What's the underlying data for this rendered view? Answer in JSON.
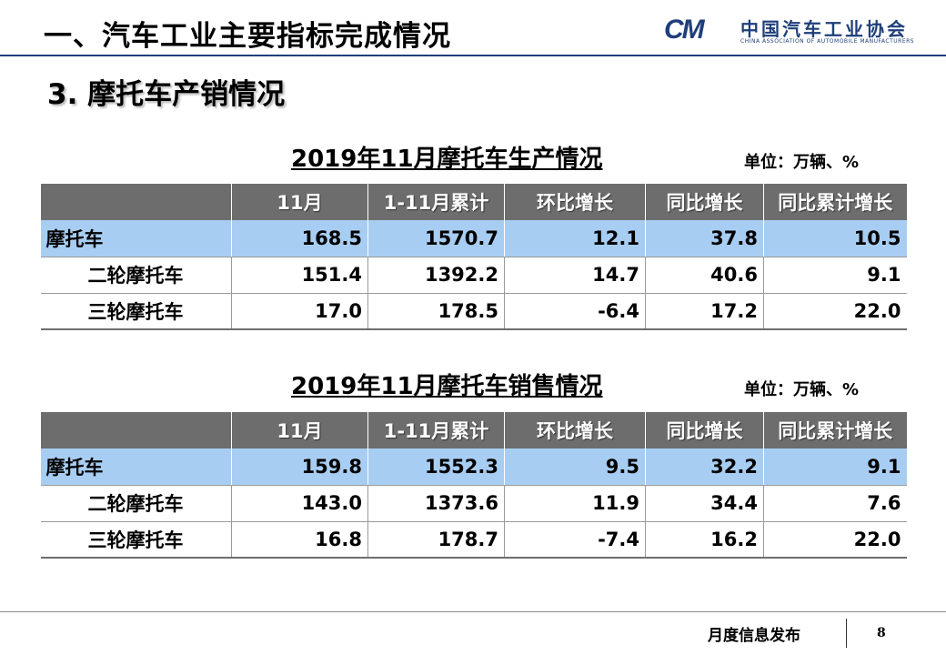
{
  "header": {
    "title": "一、汽车工业主要指标完成情况",
    "logo_mark": "CM",
    "logo_cn": "中国汽车工业协会",
    "logo_en": "CHINA ASSOCIATION OF AUTOMOBILE MANUFACTURERS"
  },
  "section_title": "3. 摩托车产销情况",
  "production": {
    "caption": "2019年11月摩托车生产情况",
    "unit": "单位：万辆、%",
    "headers": [
      "",
      "11月",
      "1-11月累计",
      "环比增长",
      "同比增长",
      "同比累计增长"
    ],
    "rows": [
      [
        "摩托车",
        "168.5",
        "1570.7",
        "12.1",
        "37.8",
        "10.5"
      ],
      [
        "二轮摩托车",
        "151.4",
        "1392.2",
        "14.7",
        "40.6",
        "9.1"
      ],
      [
        "三轮摩托车",
        "17.0",
        "178.5",
        "-6.4",
        "17.2",
        "22.0"
      ]
    ]
  },
  "sales": {
    "caption": "2019年11月摩托车销售情况",
    "unit": "单位：万辆、%",
    "headers": [
      "",
      "11月",
      "1-11月累计",
      "环比增长",
      "同比增长",
      "同比累计增长"
    ],
    "rows": [
      [
        "摩托车",
        "159.8",
        "1552.3",
        "9.5",
        "32.2",
        "9.1"
      ],
      [
        "二轮摩托车",
        "143.0",
        "1373.6",
        "11.9",
        "34.4",
        "7.6"
      ],
      [
        "三轮摩托车",
        "16.8",
        "178.7",
        "-7.4",
        "16.2",
        "22.0"
      ]
    ]
  },
  "footer": {
    "label": "月度信息发布",
    "page": "8"
  },
  "colors": {
    "header_bg": "#6d6d6d",
    "total_row_bg": "#a8cdf2",
    "brand": "#1f3f7a"
  }
}
